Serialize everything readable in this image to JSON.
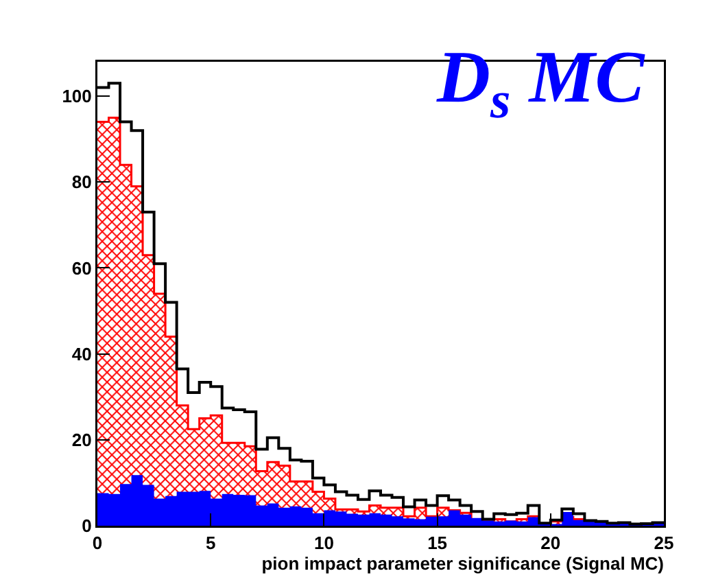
{
  "chart_data": {
    "type": "histogram",
    "title": "D$_{s}$ MC",
    "xlabel": "pion impact parameter significance (Signal MC)",
    "bins": [
      0,
      0.5,
      1,
      1.5,
      2,
      2.5,
      3,
      3.5,
      4,
      4.5,
      5,
      5.5,
      6,
      6.5,
      7,
      7.5,
      8,
      8.5,
      9,
      9.5,
      10,
      10.5,
      11,
      11.5,
      12,
      12.5,
      13,
      13.5,
      14,
      14.5,
      15,
      15.5,
      16,
      16.5,
      17,
      17.5,
      18,
      18.5,
      19,
      19.5,
      20,
      20.5,
      21,
      21.5,
      22,
      22.5,
      23,
      23.5,
      24,
      24.5,
      25
    ],
    "series": [
      {
        "color": "#000000",
        "values": [
          102,
          103,
          94,
          92,
          73,
          61,
          52,
          36.5,
          31,
          33.4,
          32.4,
          27.4,
          27,
          26.5,
          17.8,
          20.5,
          18,
          15.3,
          15,
          11.1,
          9.5,
          7.9,
          7.1,
          6.1,
          8.1,
          7.1,
          6.6,
          4.4,
          6,
          4.7,
          7,
          6,
          4.7,
          3.3,
          1.5,
          2.8,
          2.6,
          2.9,
          4.7,
          0.6,
          1.3,
          3.9,
          2.8,
          1.2,
          1,
          0.6,
          0.7,
          0.4,
          0.5,
          0.7
        ]
      },
      {
        "color": "#ff0000",
        "values": [
          94,
          95,
          84,
          79,
          63,
          54,
          44,
          28,
          22.5,
          25,
          25.7,
          19.3,
          19.3,
          18.5,
          12.7,
          14.8,
          14,
          10.3,
          10.3,
          7.9,
          6.3,
          3.8,
          3.8,
          3.3,
          4.7,
          4.2,
          4.2,
          2.2,
          4.2,
          2.2,
          4.2,
          3.6,
          3,
          1.5,
          1,
          1.5,
          1,
          1.5,
          2.2,
          0.4,
          1,
          2,
          1.5,
          0,
          0,
          0,
          0,
          0,
          0,
          0
        ]
      },
      {
        "color": "#0000ff",
        "values": [
          7.6,
          7.4,
          9.7,
          11.8,
          9.5,
          6.3,
          6.9,
          7.9,
          7.9,
          8.1,
          6.3,
          7.4,
          7.2,
          7.1,
          4.7,
          5.2,
          4.2,
          4.5,
          4.2,
          2.9,
          3.6,
          3.3,
          2.8,
          2.6,
          2.9,
          2.6,
          2.2,
          1.7,
          1.5,
          2.1,
          2.2,
          3.6,
          2.6,
          1.8,
          1.2,
          1,
          1.2,
          1,
          2,
          0.6,
          0.4,
          3.2,
          1.3,
          1.2,
          1,
          0.6,
          0.7,
          0.4,
          0.5,
          0.7
        ]
      }
    ],
    "xlim": [
      0,
      25
    ],
    "xticks": [
      0,
      5,
      10,
      15,
      20,
      25
    ],
    "ylim": [
      0,
      108
    ],
    "yticks": [
      0,
      20,
      40,
      60,
      80,
      100
    ],
    "grid": false
  }
}
